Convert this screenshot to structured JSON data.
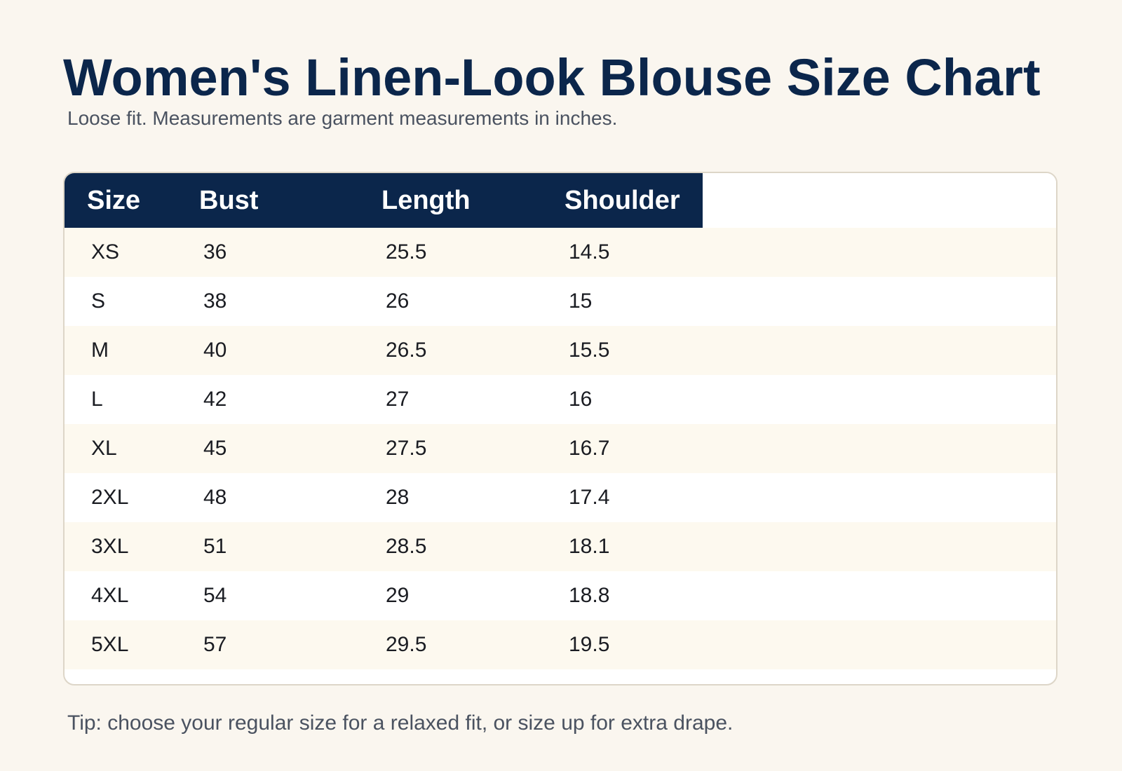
{
  "title": "Women's Linen-Look Blouse Size Chart",
  "subtitle": "Loose fit. Measurements are garment measurements in inches.",
  "table": {
    "headers": [
      "Size",
      "Bust",
      "Length",
      "Shoulder"
    ],
    "rows": [
      [
        "XS",
        "36",
        "25.5",
        "14.5"
      ],
      [
        "S",
        "38",
        "26",
        "15"
      ],
      [
        "M",
        "40",
        "26.5",
        "15.5"
      ],
      [
        "L",
        "42",
        "27",
        "16"
      ],
      [
        "XL",
        "45",
        "27.5",
        "16.7"
      ],
      [
        "2XL",
        "48",
        "28",
        "17.4"
      ],
      [
        "3XL",
        "51",
        "28.5",
        "18.1"
      ],
      [
        "4XL",
        "54",
        "29",
        "18.8"
      ],
      [
        "5XL",
        "57",
        "29.5",
        "19.5"
      ]
    ]
  },
  "tip": "Tip: choose your regular size for a relaxed fit, or size up for extra drape.",
  "colors": {
    "header_bg": "#0b264b",
    "title": "#0b264b",
    "page_bg": "#faf6ef",
    "row_alt_bg": "#fdf9ef"
  }
}
